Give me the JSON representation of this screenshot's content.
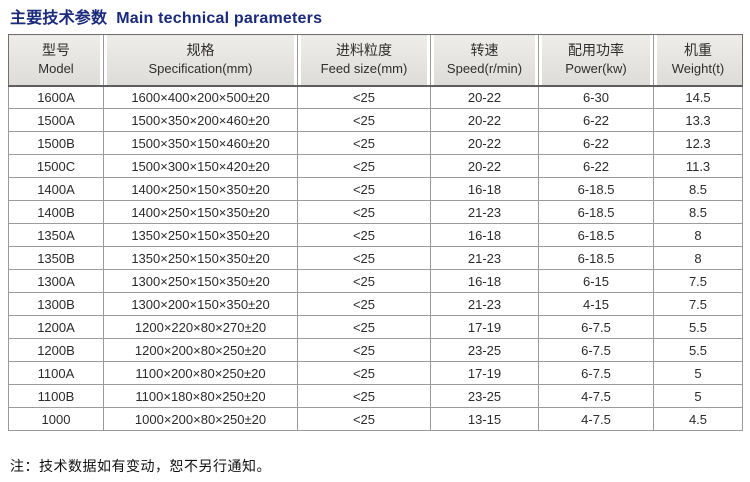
{
  "title": {
    "zh": "主要技术参数",
    "en": "Main technical parameters",
    "color": "#1a2a7c"
  },
  "table": {
    "columns": [
      {
        "zh": "型号",
        "en": "Model"
      },
      {
        "zh": "规格",
        "en": "Specification(mm)"
      },
      {
        "zh": "进料粒度",
        "en": "Feed size(mm)"
      },
      {
        "zh": "转速",
        "en": "Speed(r/min)"
      },
      {
        "zh": "配用功率",
        "en": "Power(kw)"
      },
      {
        "zh": "机重",
        "en": "Weight(t)"
      }
    ],
    "rows": [
      [
        "1600A",
        "1600×400×200×500±20",
        "<25",
        "20-22",
        "6-30",
        "14.5"
      ],
      [
        "1500A",
        "1500×350×200×460±20",
        "<25",
        "20-22",
        "6-22",
        "13.3"
      ],
      [
        "1500B",
        "1500×350×150×460±20",
        "<25",
        "20-22",
        "6-22",
        "12.3"
      ],
      [
        "1500C",
        "1500×300×150×420±20",
        "<25",
        "20-22",
        "6-22",
        "11.3"
      ],
      [
        "1400A",
        "1400×250×150×350±20",
        "<25",
        "16-18",
        "6-18.5",
        "8.5"
      ],
      [
        "1400B",
        "1400×250×150×350±20",
        "<25",
        "21-23",
        "6-18.5",
        "8.5"
      ],
      [
        "1350A",
        "1350×250×150×350±20",
        "<25",
        "16-18",
        "6-18.5",
        "8"
      ],
      [
        "1350B",
        "1350×250×150×350±20",
        "<25",
        "21-23",
        "6-18.5",
        "8"
      ],
      [
        "1300A",
        "1300×250×150×350±20",
        "<25",
        "16-18",
        "6-15",
        "7.5"
      ],
      [
        "1300B",
        "1300×200×150×350±20",
        "<25",
        "21-23",
        "4-15",
        "7.5"
      ],
      [
        "1200A",
        "1200×220×80×270±20",
        "<25",
        "17-19",
        "6-7.5",
        "5.5"
      ],
      [
        "1200B",
        "1200×200×80×250±20",
        "<25",
        "23-25",
        "6-7.5",
        "5.5"
      ],
      [
        "1100A",
        "1100×200×80×250±20",
        "<25",
        "17-19",
        "6-7.5",
        "5"
      ],
      [
        "1100B",
        "1100×180×80×250±20",
        "<25",
        "23-25",
        "4-7.5",
        "5"
      ],
      [
        "1000",
        "1000×200×80×250±20",
        "<25",
        "13-15",
        "4-7.5",
        "4.5"
      ]
    ]
  },
  "note": "注：技术数据如有变动，恕不另行通知。"
}
